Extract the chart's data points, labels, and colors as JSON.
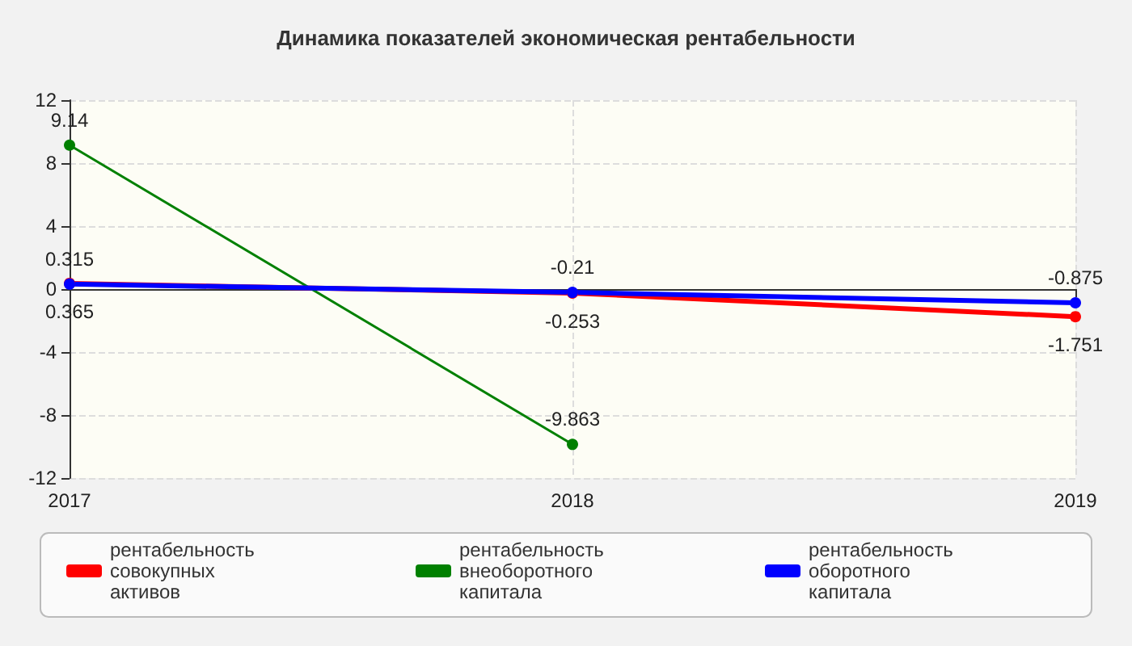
{
  "chart_data": {
    "type": "line",
    "title": "Динамика показателей экономическая рентабельности",
    "categories": [
      "2017",
      "2018",
      "2019"
    ],
    "series": [
      {
        "name": "рентабельность совокупных активов",
        "color": "#ff0000",
        "values": [
          0.365,
          -0.253,
          -1.751
        ]
      },
      {
        "name": "рентабельность внеоборотного капитала",
        "color": "#008000",
        "values": [
          9.14,
          -9.863,
          null
        ]
      },
      {
        "name": "рентабельность оборотного капитала",
        "color": "#0000ff",
        "values": [
          0.315,
          -0.21,
          -0.875
        ]
      }
    ],
    "ylim": [
      -12,
      12
    ],
    "yticks": [
      -12,
      -8,
      -4,
      0,
      4,
      8,
      12
    ],
    "grid": true,
    "legend": "bottom",
    "marker": "circle",
    "data_labels": true
  }
}
